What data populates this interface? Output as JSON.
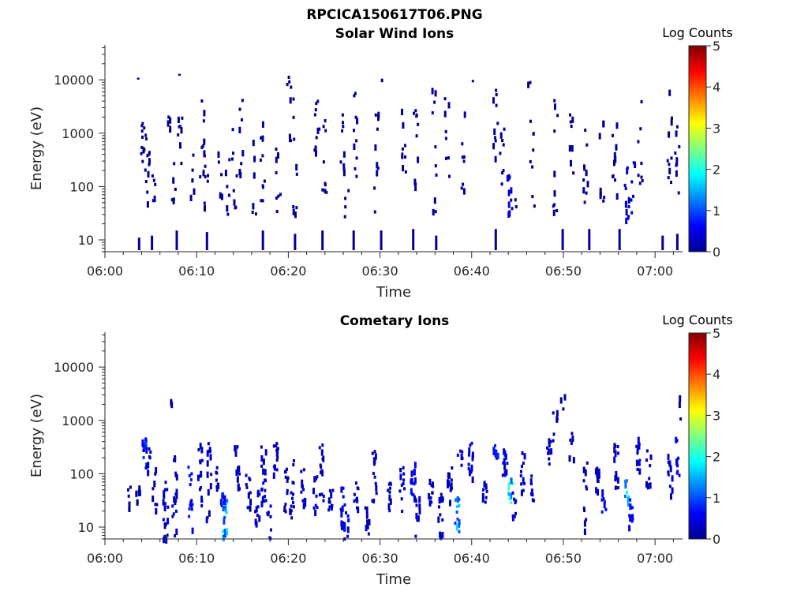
{
  "figure_title": "RPCICA150617T06.PNG",
  "chart_data": [
    {
      "type": "heatmap",
      "title": "Solar Wind Ions",
      "xlabel": "Time",
      "ylabel": "Energy (eV)",
      "x_ticks": [
        "06:00",
        "06:10",
        "06:20",
        "06:30",
        "06:40",
        "06:50",
        "07:00"
      ],
      "x_range_minutes": [
        0,
        63
      ],
      "y_scale": "log",
      "y_ticks": [
        "10",
        "100",
        "1000",
        "10000"
      ],
      "y_range": [
        6,
        45000
      ],
      "colorbar": {
        "title": "Log Counts",
        "ticks": [
          "0",
          "1",
          "2",
          "3",
          "4",
          "5"
        ],
        "range": [
          0,
          5
        ],
        "colormap": "jet"
      },
      "grid": false,
      "regions": [
        {
          "t": 3.6,
          "e": [
            6,
            11
          ],
          "v": 0.1
        },
        {
          "t": 3.5,
          "e": [
            10500,
            11000
          ],
          "v": 0.1
        },
        {
          "t": 4.0,
          "e": [
            300,
            2000
          ],
          "v": 0.1,
          "n": 10
        },
        {
          "t": 4.5,
          "e": [
            35,
            3000
          ],
          "v": 0.1,
          "n": 12
        },
        {
          "t": 5.0,
          "e": [
            6,
            12
          ],
          "v": 0.2
        },
        {
          "t": 5.2,
          "e": [
            30,
            200
          ],
          "v": 0.1,
          "n": 5
        },
        {
          "t": 6.8,
          "e": [
            800,
            3000
          ],
          "v": 0.1,
          "n": 5
        },
        {
          "t": 7.4,
          "e": [
            25,
            400
          ],
          "v": 0.1,
          "n": 6
        },
        {
          "t": 7.7,
          "e": [
            6,
            15
          ],
          "v": 0.1
        },
        {
          "t": 8.0,
          "e": [
            12000,
            13000
          ],
          "v": 0.1
        },
        {
          "t": 8.1,
          "e": [
            150,
            2700
          ],
          "v": 0.1,
          "n": 8
        },
        {
          "t": 9.5,
          "e": [
            30,
            1200
          ],
          "v": 0.1,
          "n": 6
        },
        {
          "t": 10.5,
          "e": [
            150,
            5000
          ],
          "v": 0.1,
          "n": 10
        },
        {
          "t": 10.9,
          "e": [
            25,
            300
          ],
          "v": 0.1,
          "n": 6
        },
        {
          "t": 11.0,
          "e": [
            6,
            14
          ],
          "v": 0.1
        },
        {
          "t": 12.5,
          "e": [
            40,
            800
          ],
          "v": 0.1,
          "n": 6
        },
        {
          "t": 13.2,
          "e": [
            30,
            450
          ],
          "v": 0.1,
          "n": 6
        },
        {
          "t": 14.0,
          "e": [
            40,
            2000
          ],
          "v": 0.1,
          "n": 8
        },
        {
          "t": 14.7,
          "e": [
            40,
            5000
          ],
          "v": 0.1,
          "n": 8
        },
        {
          "t": 16.2,
          "e": [
            25,
            800
          ],
          "v": 0.1,
          "n": 6
        },
        {
          "t": 17.1,
          "e": [
            6,
            15
          ],
          "v": 0.1
        },
        {
          "t": 17.1,
          "e": [
            50,
            3000
          ],
          "v": 0.1,
          "n": 10
        },
        {
          "t": 18.8,
          "e": [
            25,
            1000
          ],
          "v": 0.1,
          "n": 8
        },
        {
          "t": 20.0,
          "e": [
            7000,
            12000
          ],
          "v": 0.1,
          "n": 4
        },
        {
          "t": 20.3,
          "e": [
            200,
            6000
          ],
          "v": 0.1,
          "n": 8
        },
        {
          "t": 20.6,
          "e": [
            25,
            400
          ],
          "v": 0.1,
          "n": 6
        },
        {
          "t": 20.6,
          "e": [
            6,
            13
          ],
          "v": 0.1
        },
        {
          "t": 23.0,
          "e": [
            200,
            8000
          ],
          "v": 0.1,
          "n": 10
        },
        {
          "t": 23.6,
          "e": [
            6,
            15
          ],
          "v": 0.1
        },
        {
          "t": 23.8,
          "e": [
            80,
            3000
          ],
          "v": 0.1,
          "n": 10
        },
        {
          "t": 25.8,
          "e": [
            200,
            3000
          ],
          "v": 0.1,
          "n": 8
        },
        {
          "t": 26.2,
          "e": [
            25,
            400
          ],
          "v": 0.1,
          "n": 6
        },
        {
          "t": 27.0,
          "e": [
            6,
            15
          ],
          "v": 0.1
        },
        {
          "t": 27.2,
          "e": [
            100,
            6000
          ],
          "v": 0.1,
          "n": 10
        },
        {
          "t": 29.5,
          "e": [
            20,
            3000
          ],
          "v": 0.1,
          "n": 10
        },
        {
          "t": 30.0,
          "e": [
            6,
            15
          ],
          "v": 0.1
        },
        {
          "t": 30.1,
          "e": [
            9000,
            10500
          ],
          "v": 0.1
        },
        {
          "t": 32.5,
          "e": [
            80,
            3000
          ],
          "v": 0.1,
          "n": 8
        },
        {
          "t": 33.5,
          "e": [
            6,
            16
          ],
          "v": 0.1
        },
        {
          "t": 33.8,
          "e": [
            100,
            5000
          ],
          "v": 0.1,
          "n": 10
        },
        {
          "t": 35.8,
          "e": [
            25,
            8000
          ],
          "v": 0.1,
          "n": 10
        },
        {
          "t": 36.0,
          "e": [
            6,
            12
          ],
          "v": 0.1
        },
        {
          "t": 37.2,
          "e": [
            150,
            5000
          ],
          "v": 0.1,
          "n": 8
        },
        {
          "t": 39.0,
          "e": [
            80,
            3000
          ],
          "v": 0.1,
          "n": 8
        },
        {
          "t": 40.0,
          "e": [
            9000,
            10000
          ],
          "v": 0.1
        },
        {
          "t": 42.5,
          "e": [
            6,
            16
          ],
          "v": 0.1
        },
        {
          "t": 42.5,
          "e": [
            200,
            7000
          ],
          "v": 0.1,
          "n": 10
        },
        {
          "t": 43.2,
          "e": [
            50,
            3000
          ],
          "v": 0.1,
          "n": 8
        },
        {
          "t": 44.0,
          "e": [
            30,
            200
          ],
          "v": 0.4,
          "n": 10
        },
        {
          "t": 44.5,
          "e": [
            30,
            80
          ],
          "v": 0.2,
          "n": 3
        },
        {
          "t": 46.2,
          "e": [
            8000,
            10500
          ],
          "v": 0.1,
          "n": 2
        },
        {
          "t": 46.5,
          "e": [
            40,
            4000
          ],
          "v": 0.1,
          "n": 8
        },
        {
          "t": 49.0,
          "e": [
            30,
            10000
          ],
          "v": 0.1,
          "n": 10
        },
        {
          "t": 49.8,
          "e": [
            6,
            16
          ],
          "v": 0.2
        },
        {
          "t": 50.8,
          "e": [
            150,
            3000
          ],
          "v": 0.1,
          "n": 8
        },
        {
          "t": 52.3,
          "e": [
            20,
            3000
          ],
          "v": 0.1,
          "n": 10
        },
        {
          "t": 52.7,
          "e": [
            6,
            16
          ],
          "v": 0.2
        },
        {
          "t": 54.1,
          "e": [
            40,
            2000
          ],
          "v": 0.1,
          "n": 8
        },
        {
          "t": 55.5,
          "e": [
            40,
            2000
          ],
          "v": 0.1,
          "n": 10
        },
        {
          "t": 56.0,
          "e": [
            6,
            16
          ],
          "v": 0.2
        },
        {
          "t": 56.8,
          "e": [
            25,
            300
          ],
          "v": 0.4,
          "n": 12
        },
        {
          "t": 57.5,
          "e": [
            30,
            400
          ],
          "v": 0.3,
          "n": 6
        },
        {
          "t": 58.3,
          "e": [
            60,
            8000
          ],
          "v": 0.1,
          "n": 8
        },
        {
          "t": 60.7,
          "e": [
            6,
            12
          ],
          "v": 0.1
        },
        {
          "t": 61.5,
          "e": [
            100,
            10000
          ],
          "v": 0.1,
          "n": 10
        },
        {
          "t": 62.3,
          "e": [
            80,
            2000
          ],
          "v": 0.2,
          "n": 10
        },
        {
          "t": 62.3,
          "e": [
            6,
            13
          ],
          "v": 0.1
        }
      ]
    },
    {
      "type": "heatmap",
      "title": "Cometary Ions",
      "xlabel": "Time",
      "ylabel": "Energy (eV)",
      "x_ticks": [
        "06:00",
        "06:10",
        "06:20",
        "06:30",
        "06:40",
        "06:50",
        "07:00"
      ],
      "x_range_minutes": [
        0,
        63
      ],
      "y_scale": "log",
      "y_ticks": [
        "10",
        "100",
        "1000",
        "10000"
      ],
      "y_range": [
        6,
        45000
      ],
      "colorbar": {
        "title": "Log Counts",
        "ticks": [
          "0",
          "1",
          "2",
          "3",
          "4",
          "5"
        ],
        "range": [
          0,
          5
        ],
        "colormap": "jet"
      },
      "grid": false,
      "regions": [
        {
          "t": 2.6,
          "e": [
            15,
            100
          ],
          "v": 0.2,
          "n": 6
        },
        {
          "t": 3.5,
          "e": [
            30,
            70
          ],
          "v": 0.2,
          "n": 6
        },
        {
          "t": 4.2,
          "e": [
            200,
            500
          ],
          "v": 0.7,
          "n": 10
        },
        {
          "t": 4.6,
          "e": [
            100,
            400
          ],
          "v": 0.4,
          "n": 10
        },
        {
          "t": 5.3,
          "e": [
            20,
            150
          ],
          "v": 0.2,
          "n": 8
        },
        {
          "t": 6.5,
          "e": [
            6,
            80
          ],
          "v": 0.3,
          "n": 18
        },
        {
          "t": 7.5,
          "e": [
            6,
            300
          ],
          "v": 0.3,
          "n": 18
        },
        {
          "t": 7.2,
          "e": [
            1500,
            4000
          ],
          "v": 0.1,
          "n": 2
        },
        {
          "t": 9.2,
          "e": [
            8,
            150
          ],
          "v": 0.6,
          "n": 14
        },
        {
          "t": 10.3,
          "e": [
            25,
            400
          ],
          "v": 0.3,
          "n": 14
        },
        {
          "t": 11.2,
          "e": [
            15,
            500
          ],
          "v": 0.3,
          "n": 14
        },
        {
          "t": 12.0,
          "e": [
            50,
            300
          ],
          "v": 0.2,
          "n": 8
        },
        {
          "t": 13.0,
          "e": [
            6,
            40
          ],
          "v": 1.4,
          "n": 18
        },
        {
          "t": 12.8,
          "e": [
            20,
            60
          ],
          "v": 0.6,
          "n": 8
        },
        {
          "t": 14.3,
          "e": [
            30,
            400
          ],
          "v": 0.3,
          "n": 14
        },
        {
          "t": 15.5,
          "e": [
            20,
            100
          ],
          "v": 0.2,
          "n": 10
        },
        {
          "t": 16.5,
          "e": [
            12,
            60
          ],
          "v": 0.3,
          "n": 10
        },
        {
          "t": 17.2,
          "e": [
            30,
            400
          ],
          "v": 0.4,
          "n": 18
        },
        {
          "t": 17.8,
          "e": [
            6,
            30
          ],
          "v": 0.5,
          "n": 8
        },
        {
          "t": 18.5,
          "e": [
            100,
            400
          ],
          "v": 0.3,
          "n": 14
        },
        {
          "t": 19.6,
          "e": [
            20,
            150
          ],
          "v": 0.2,
          "n": 12
        },
        {
          "t": 20.3,
          "e": [
            15,
            200
          ],
          "v": 0.3,
          "n": 14
        },
        {
          "t": 21.5,
          "e": [
            25,
            150
          ],
          "v": 0.3,
          "n": 12
        },
        {
          "t": 22.8,
          "e": [
            20,
            100
          ],
          "v": 0.3,
          "n": 10
        },
        {
          "t": 23.5,
          "e": [
            30,
            400
          ],
          "v": 0.3,
          "n": 14
        },
        {
          "t": 24.5,
          "e": [
            20,
            80
          ],
          "v": 0.3,
          "n": 10
        },
        {
          "t": 25.8,
          "e": [
            10,
            60
          ],
          "v": 0.4,
          "n": 14
        },
        {
          "t": 26.2,
          "e": [
            6,
            20
          ],
          "v": 0.5,
          "n": 8
        },
        {
          "t": 27.3,
          "e": [
            20,
            80
          ],
          "v": 0.3,
          "n": 10
        },
        {
          "t": 28.5,
          "e": [
            6,
            25
          ],
          "v": 0.3,
          "n": 8
        },
        {
          "t": 29.3,
          "e": [
            30,
            300
          ],
          "v": 0.3,
          "n": 14
        },
        {
          "t": 30.8,
          "e": [
            20,
            90
          ],
          "v": 0.3,
          "n": 10
        },
        {
          "t": 32.3,
          "e": [
            20,
            200
          ],
          "v": 0.3,
          "n": 12
        },
        {
          "t": 33.5,
          "e": [
            30,
            200
          ],
          "v": 0.5,
          "n": 16
        },
        {
          "t": 34.0,
          "e": [
            6,
            40
          ],
          "v": 0.4,
          "n": 10
        },
        {
          "t": 35.4,
          "e": [
            25,
            90
          ],
          "v": 0.3,
          "n": 10
        },
        {
          "t": 36.5,
          "e": [
            6,
            50
          ],
          "v": 0.3,
          "n": 12
        },
        {
          "t": 37.5,
          "e": [
            30,
            150
          ],
          "v": 0.3,
          "n": 12
        },
        {
          "t": 38.3,
          "e": [
            8,
            40
          ],
          "v": 1.3,
          "n": 14
        },
        {
          "t": 38.6,
          "e": [
            150,
            300
          ],
          "v": 0.5,
          "n": 6
        },
        {
          "t": 39.8,
          "e": [
            80,
            400
          ],
          "v": 0.4,
          "n": 14
        },
        {
          "t": 41.3,
          "e": [
            30,
            80
          ],
          "v": 0.3,
          "n": 10
        },
        {
          "t": 42.5,
          "e": [
            200,
            400
          ],
          "v": 0.6,
          "n": 10
        },
        {
          "t": 43.5,
          "e": [
            100,
            300
          ],
          "v": 0.4,
          "n": 12
        },
        {
          "t": 44.1,
          "e": [
            30,
            90
          ],
          "v": 1.7,
          "n": 10
        },
        {
          "t": 44.6,
          "e": [
            15,
            50
          ],
          "v": 0.4,
          "n": 8
        },
        {
          "t": 45.5,
          "e": [
            50,
            300
          ],
          "v": 0.3,
          "n": 12
        },
        {
          "t": 46.5,
          "e": [
            30,
            100
          ],
          "v": 0.3,
          "n": 10
        },
        {
          "t": 48.3,
          "e": [
            150,
            500
          ],
          "v": 0.3,
          "n": 10
        },
        {
          "t": 49.0,
          "e": [
            400,
            2000
          ],
          "v": 0.2,
          "n": 6
        },
        {
          "t": 49.8,
          "e": [
            1000,
            3500
          ],
          "v": 0.1,
          "n": 3
        },
        {
          "t": 50.8,
          "e": [
            200,
            800
          ],
          "v": 0.2,
          "n": 6
        },
        {
          "t": 52.3,
          "e": [
            8,
            200
          ],
          "v": 0.2,
          "n": 12
        },
        {
          "t": 53.6,
          "e": [
            40,
            150
          ],
          "v": 0.3,
          "n": 10
        },
        {
          "t": 54.3,
          "e": [
            20,
            60
          ],
          "v": 0.6,
          "n": 8
        },
        {
          "t": 55.7,
          "e": [
            50,
            400
          ],
          "v": 0.3,
          "n": 14
        },
        {
          "t": 56.8,
          "e": [
            25,
            80
          ],
          "v": 1.6,
          "n": 10
        },
        {
          "t": 57.3,
          "e": [
            10,
            40
          ],
          "v": 0.5,
          "n": 10
        },
        {
          "t": 58.0,
          "e": [
            100,
            500
          ],
          "v": 0.4,
          "n": 14
        },
        {
          "t": 59.2,
          "e": [
            50,
            300
          ],
          "v": 0.3,
          "n": 10
        },
        {
          "t": 61.5,
          "e": [
            30,
            300
          ],
          "v": 0.4,
          "n": 12
        },
        {
          "t": 62.3,
          "e": [
            100,
            500
          ],
          "v": 0.5,
          "n": 10
        },
        {
          "t": 62.5,
          "e": [
            1000,
            3000
          ],
          "v": 0.1,
          "n": 3
        }
      ]
    }
  ]
}
